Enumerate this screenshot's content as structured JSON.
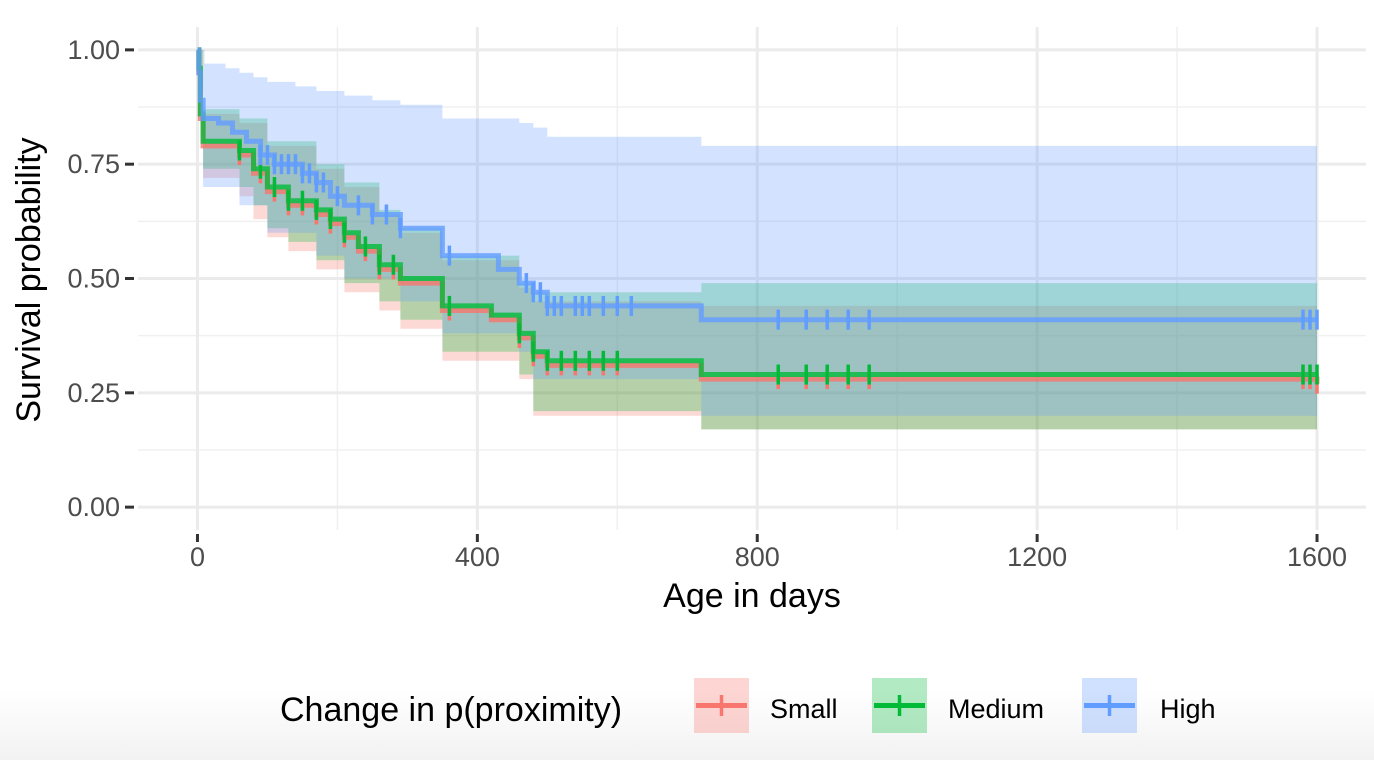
{
  "chart_data": {
    "type": "line",
    "subtype": "kaplan-meier survival curves with confidence bands and censor marks",
    "xlabel": "Age in days",
    "ylabel": "Survival probability",
    "xlim": [
      -85,
      1670
    ],
    "ylim": [
      -0.05,
      1.05
    ],
    "x_ticks": [
      0,
      400,
      800,
      1200,
      1600
    ],
    "x_tick_labels": [
      "0",
      "400",
      "800",
      "1200",
      "1600"
    ],
    "y_ticks": [
      0,
      0.25,
      0.5,
      0.75,
      1.0
    ],
    "y_tick_labels": [
      "0.00",
      "0.25",
      "0.50",
      "0.75",
      "1.00"
    ],
    "grid": true,
    "legend": {
      "title": "Change in p(proximity)",
      "position": "bottom"
    },
    "series": [
      {
        "name": "Small",
        "color": "#F8766D",
        "steps": [
          [
            0,
            1.0
          ],
          [
            2,
            0.95
          ],
          [
            4,
            0.85
          ],
          [
            8,
            0.79
          ],
          [
            60,
            0.77
          ],
          [
            80,
            0.73
          ],
          [
            100,
            0.69
          ],
          [
            130,
            0.66
          ],
          [
            170,
            0.64
          ],
          [
            190,
            0.62
          ],
          [
            210,
            0.59
          ],
          [
            230,
            0.56
          ],
          [
            260,
            0.52
          ],
          [
            290,
            0.49
          ],
          [
            350,
            0.43
          ],
          [
            420,
            0.41
          ],
          [
            460,
            0.37
          ],
          [
            480,
            0.33
          ],
          [
            500,
            0.31
          ],
          [
            720,
            0.28
          ],
          [
            1600,
            0.27
          ]
        ],
        "lower": [
          [
            0,
            1.0
          ],
          [
            2,
            0.9
          ],
          [
            8,
            0.72
          ],
          [
            60,
            0.68
          ],
          [
            80,
            0.63
          ],
          [
            100,
            0.59
          ],
          [
            130,
            0.56
          ],
          [
            170,
            0.52
          ],
          [
            210,
            0.47
          ],
          [
            260,
            0.43
          ],
          [
            290,
            0.39
          ],
          [
            350,
            0.32
          ],
          [
            460,
            0.28
          ],
          [
            480,
            0.2
          ],
          [
            720,
            0.17
          ],
          [
            1600,
            0.17
          ]
        ],
        "upper": [
          [
            0,
            1.0
          ],
          [
            8,
            0.86
          ],
          [
            60,
            0.84
          ],
          [
            100,
            0.79
          ],
          [
            170,
            0.74
          ],
          [
            210,
            0.7
          ],
          [
            260,
            0.64
          ],
          [
            290,
            0.6
          ],
          [
            350,
            0.54
          ],
          [
            460,
            0.48
          ],
          [
            480,
            0.45
          ],
          [
            720,
            0.44
          ],
          [
            1600,
            0.44
          ]
        ],
        "censor_x": [
          60,
          90,
          110,
          130,
          150,
          170,
          190,
          210,
          240,
          260,
          280,
          360,
          460,
          480,
          500,
          520,
          540,
          560,
          580,
          600,
          830,
          870,
          900,
          930,
          960,
          1580,
          1590,
          1600
        ]
      },
      {
        "name": "Medium",
        "color": "#00BA38",
        "steps": [
          [
            0,
            1.0
          ],
          [
            2,
            0.96
          ],
          [
            4,
            0.86
          ],
          [
            8,
            0.8
          ],
          [
            60,
            0.78
          ],
          [
            80,
            0.74
          ],
          [
            100,
            0.7
          ],
          [
            130,
            0.67
          ],
          [
            170,
            0.65
          ],
          [
            190,
            0.63
          ],
          [
            210,
            0.6
          ],
          [
            230,
            0.57
          ],
          [
            260,
            0.53
          ],
          [
            290,
            0.5
          ],
          [
            350,
            0.44
          ],
          [
            420,
            0.42
          ],
          [
            460,
            0.38
          ],
          [
            480,
            0.34
          ],
          [
            500,
            0.32
          ],
          [
            720,
            0.29
          ],
          [
            1600,
            0.29
          ]
        ],
        "lower": [
          [
            0,
            1.0
          ],
          [
            2,
            0.91
          ],
          [
            8,
            0.74
          ],
          [
            60,
            0.7
          ],
          [
            80,
            0.66
          ],
          [
            100,
            0.61
          ],
          [
            130,
            0.58
          ],
          [
            170,
            0.54
          ],
          [
            210,
            0.49
          ],
          [
            260,
            0.45
          ],
          [
            290,
            0.41
          ],
          [
            350,
            0.34
          ],
          [
            460,
            0.29
          ],
          [
            480,
            0.21
          ],
          [
            720,
            0.17
          ],
          [
            1600,
            0.17
          ]
        ],
        "upper": [
          [
            0,
            1.0
          ],
          [
            8,
            0.87
          ],
          [
            60,
            0.85
          ],
          [
            100,
            0.8
          ],
          [
            170,
            0.75
          ],
          [
            210,
            0.71
          ],
          [
            260,
            0.65
          ],
          [
            290,
            0.61
          ],
          [
            350,
            0.55
          ],
          [
            460,
            0.49
          ],
          [
            480,
            0.47
          ],
          [
            720,
            0.49
          ],
          [
            1600,
            0.49
          ]
        ],
        "censor_x": [
          60,
          90,
          110,
          130,
          150,
          170,
          190,
          210,
          240,
          260,
          280,
          360,
          460,
          480,
          500,
          520,
          540,
          560,
          580,
          600,
          830,
          870,
          900,
          930,
          960,
          1580,
          1590,
          1600
        ]
      },
      {
        "name": "High",
        "color": "#619CFF",
        "steps": [
          [
            0,
            1.0
          ],
          [
            2,
            0.95
          ],
          [
            4,
            0.89
          ],
          [
            8,
            0.85
          ],
          [
            30,
            0.84
          ],
          [
            50,
            0.82
          ],
          [
            70,
            0.8
          ],
          [
            90,
            0.77
          ],
          [
            110,
            0.75
          ],
          [
            150,
            0.73
          ],
          [
            170,
            0.71
          ],
          [
            190,
            0.68
          ],
          [
            210,
            0.66
          ],
          [
            250,
            0.64
          ],
          [
            290,
            0.61
          ],
          [
            350,
            0.55
          ],
          [
            430,
            0.52
          ],
          [
            460,
            0.49
          ],
          [
            480,
            0.47
          ],
          [
            500,
            0.44
          ],
          [
            720,
            0.41
          ],
          [
            1600,
            0.41
          ]
        ],
        "lower": [
          [
            0,
            1.0
          ],
          [
            8,
            0.7
          ],
          [
            60,
            0.66
          ],
          [
            100,
            0.6
          ],
          [
            170,
            0.55
          ],
          [
            210,
            0.5
          ],
          [
            290,
            0.45
          ],
          [
            350,
            0.38
          ],
          [
            460,
            0.34
          ],
          [
            480,
            0.28
          ],
          [
            720,
            0.2
          ],
          [
            1600,
            0.2
          ]
        ],
        "upper": [
          [
            0,
            1.0
          ],
          [
            10,
            0.97
          ],
          [
            40,
            0.96
          ],
          [
            60,
            0.95
          ],
          [
            80,
            0.94
          ],
          [
            100,
            0.93
          ],
          [
            140,
            0.92
          ],
          [
            170,
            0.91
          ],
          [
            210,
            0.9
          ],
          [
            250,
            0.89
          ],
          [
            290,
            0.88
          ],
          [
            350,
            0.85
          ],
          [
            420,
            0.85
          ],
          [
            460,
            0.84
          ],
          [
            480,
            0.83
          ],
          [
            500,
            0.81
          ],
          [
            720,
            0.79
          ],
          [
            1600,
            0.79
          ]
        ],
        "censor_x": [
          90,
          100,
          110,
          120,
          130,
          140,
          150,
          160,
          170,
          180,
          200,
          230,
          250,
          270,
          290,
          360,
          470,
          480,
          490,
          500,
          510,
          520,
          540,
          550,
          560,
          580,
          600,
          620,
          830,
          870,
          900,
          930,
          960,
          1580,
          1590,
          1600
        ]
      }
    ]
  }
}
